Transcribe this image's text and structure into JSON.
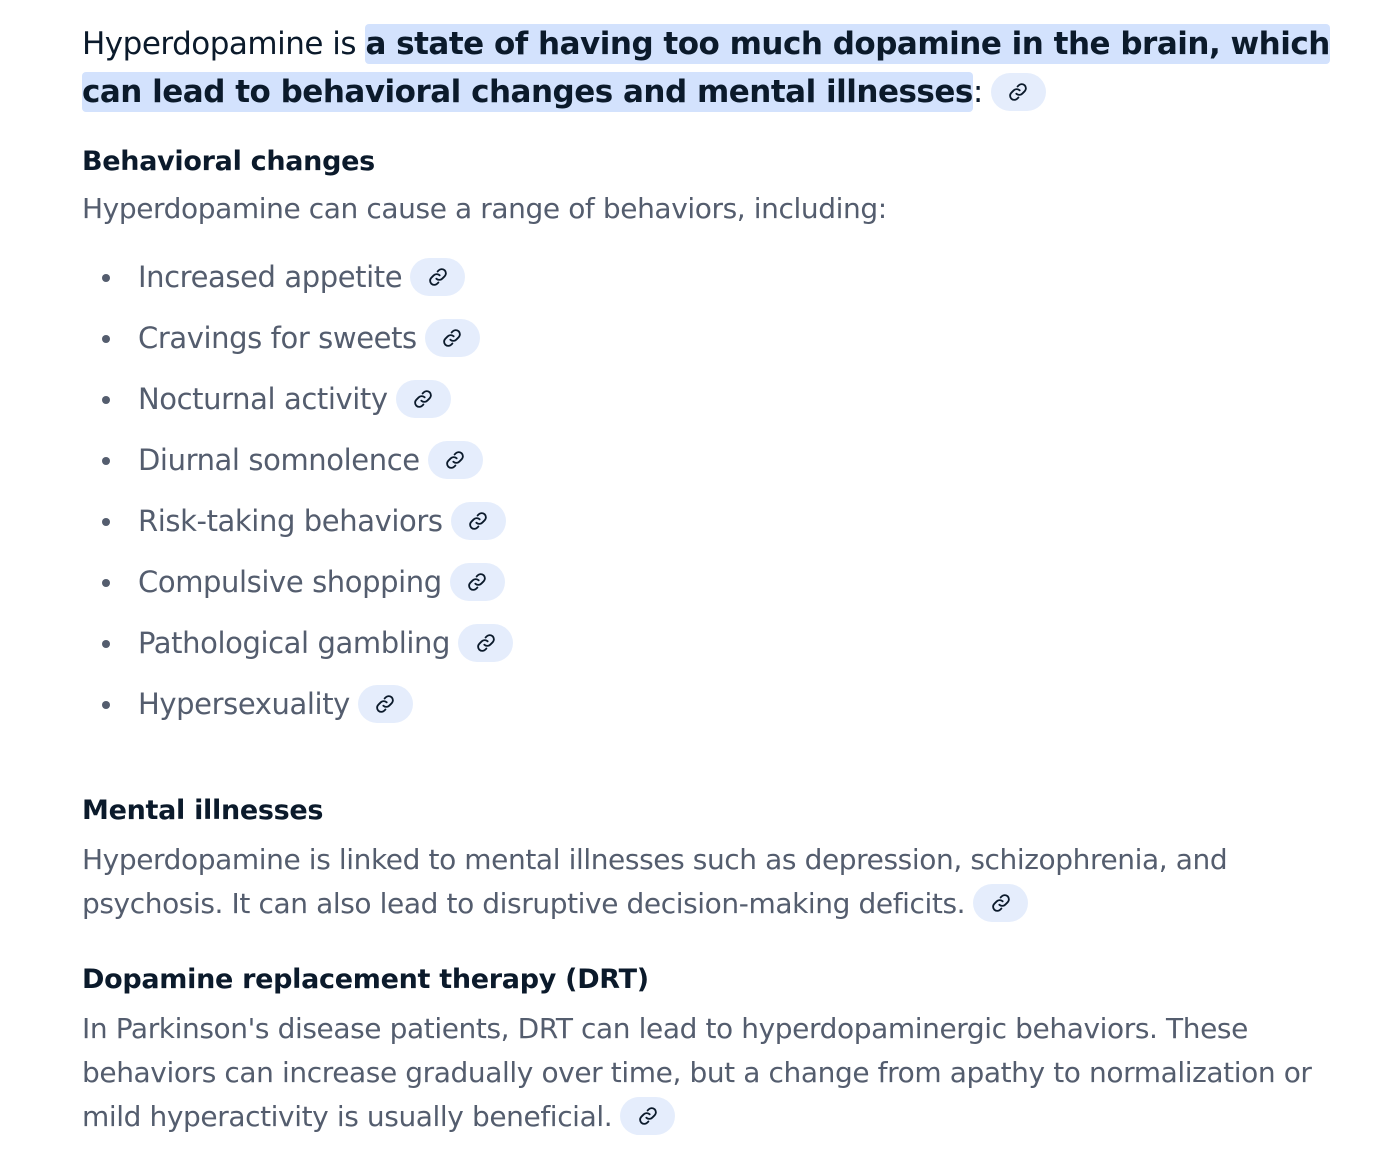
{
  "intro": {
    "lead": "Hyperdopamine is ",
    "highlight": "a state of having too much dopamine in the brain, which can lead to behavioral changes and mental illnesses",
    "trail": ":"
  },
  "behavioral": {
    "title": "Behavioral changes",
    "description": "Hyperdopamine can cause a range of behaviors, including:",
    "items": [
      "Increased appetite",
      "Cravings for sweets",
      "Nocturnal activity",
      "Diurnal somnolence",
      "Risk-taking behaviors",
      "Compulsive shopping",
      "Pathological gambling",
      "Hypersexuality"
    ]
  },
  "mental": {
    "title": "Mental illnesses",
    "description": "Hyperdopamine is linked to mental illnesses such as depression, schizophrenia, and psychosis. It can also lead to disruptive decision-making deficits."
  },
  "drt": {
    "title": "Dopamine replacement therapy (DRT)",
    "description": "In Parkinson's disease patients, DRT can lead to hyperdopaminergic behaviors. These behaviors can increase gradually over time, but a change from apathy to normalization or mild hyperactivity is usually beneficial."
  },
  "icons": {
    "source_link": "link-icon"
  },
  "colors": {
    "highlight_bg": "#d3e2fd",
    "chip_bg": "#e5edfc",
    "heading_text": "#0b1a2b",
    "body_text": "#545d6e"
  }
}
